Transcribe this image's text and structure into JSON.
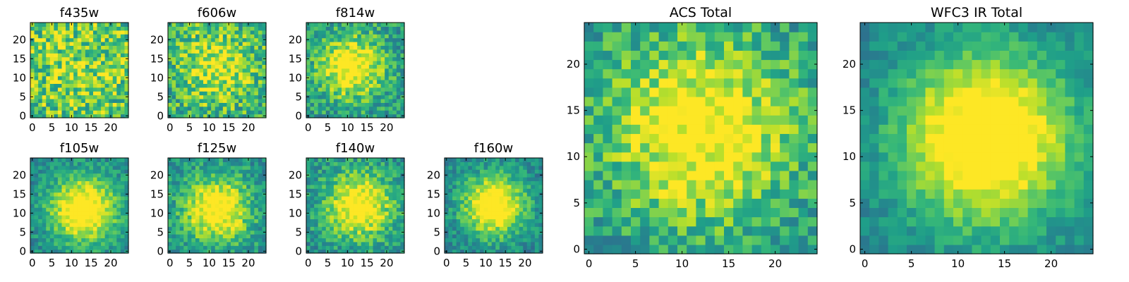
{
  "chart_data": [
    {
      "type": "heatmap",
      "title": "f435w",
      "xlim": [
        -0.5,
        24.5
      ],
      "ylim": [
        -0.5,
        24.5
      ],
      "xticks": [
        0,
        5,
        10,
        15,
        20
      ],
      "yticks": [
        0,
        5,
        10,
        15,
        20
      ],
      "center": [
        12,
        12
      ],
      "spread": 9,
      "contrast": 0.15,
      "noise": 0.55,
      "seed": 11
    },
    {
      "type": "heatmap",
      "title": "f606w",
      "xlim": [
        -0.5,
        24.5
      ],
      "ylim": [
        -0.5,
        24.5
      ],
      "xticks": [
        0,
        5,
        10,
        15,
        20
      ],
      "yticks": [
        0,
        5,
        10,
        15,
        20
      ],
      "center": [
        12,
        13
      ],
      "spread": 7,
      "contrast": 0.35,
      "noise": 0.5,
      "seed": 23
    },
    {
      "type": "heatmap",
      "title": "f814w",
      "xlim": [
        -0.5,
        24.5
      ],
      "ylim": [
        -0.5,
        24.5
      ],
      "xticks": [
        0,
        5,
        10,
        15,
        20
      ],
      "yticks": [
        0,
        5,
        10,
        15,
        20
      ],
      "center": [
        11,
        13
      ],
      "spread": 6,
      "contrast": 0.55,
      "noise": 0.4,
      "seed": 37
    },
    {
      "type": "heatmap",
      "title": "f105w",
      "xlim": [
        -0.5,
        24.5
      ],
      "ylim": [
        -0.5,
        24.5
      ],
      "xticks": [
        0,
        5,
        10,
        15,
        20
      ],
      "yticks": [
        0,
        5,
        10,
        15,
        20
      ],
      "center": [
        13,
        11
      ],
      "spread": 6,
      "contrast": 0.7,
      "noise": 0.28,
      "seed": 41
    },
    {
      "type": "heatmap",
      "title": "f125w",
      "xlim": [
        -0.5,
        24.5
      ],
      "ylim": [
        -0.5,
        24.5
      ],
      "xticks": [
        0,
        5,
        10,
        15,
        20
      ],
      "yticks": [
        0,
        5,
        10,
        15,
        20
      ],
      "center": [
        12,
        11
      ],
      "spread": 6,
      "contrast": 0.62,
      "noise": 0.34,
      "seed": 53
    },
    {
      "type": "heatmap",
      "title": "f140w",
      "xlim": [
        -0.5,
        24.5
      ],
      "ylim": [
        -0.5,
        24.5
      ],
      "xticks": [
        0,
        5,
        10,
        15,
        20
      ],
      "yticks": [
        0,
        5,
        10,
        15,
        20
      ],
      "center": [
        13,
        12
      ],
      "spread": 6,
      "contrast": 0.6,
      "noise": 0.34,
      "seed": 67
    },
    {
      "type": "heatmap",
      "title": "f160w",
      "xlim": [
        -0.5,
        24.5
      ],
      "ylim": [
        -0.5,
        24.5
      ],
      "xticks": [
        0,
        5,
        10,
        15,
        20
      ],
      "yticks": [
        0,
        5,
        10,
        15,
        20
      ],
      "center": [
        12,
        12
      ],
      "spread": 5.5,
      "contrast": 0.72,
      "noise": 0.3,
      "seed": 79
    },
    {
      "type": "heatmap",
      "title": "ACS Total",
      "xlim": [
        -0.5,
        24.5
      ],
      "ylim": [
        -0.5,
        24.5
      ],
      "xticks": [
        0,
        5,
        10,
        15,
        20
      ],
      "yticks": [
        0,
        5,
        10,
        15,
        20
      ],
      "center": [
        12,
        13
      ],
      "spread": 7,
      "contrast": 0.55,
      "noise": 0.38,
      "seed": 97
    },
    {
      "type": "heatmap",
      "title": "WFC3 IR Total",
      "xlim": [
        -0.5,
        24.5
      ],
      "ylim": [
        -0.5,
        24.5
      ],
      "xticks": [
        0,
        5,
        10,
        15,
        20
      ],
      "yticks": [
        0,
        5,
        10,
        15,
        20
      ],
      "center": [
        13,
        12
      ],
      "spread": 6.5,
      "contrast": 0.78,
      "noise": 0.2,
      "seed": 113
    }
  ]
}
